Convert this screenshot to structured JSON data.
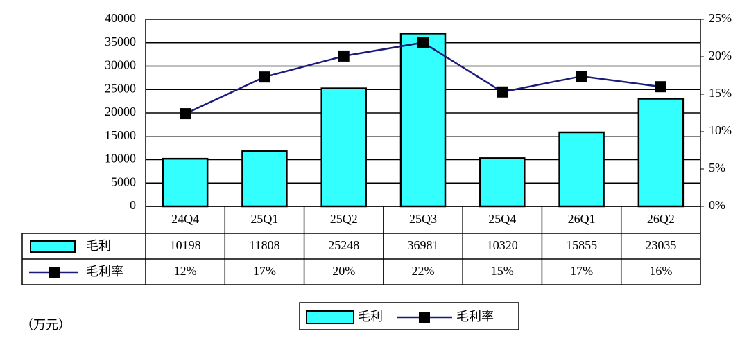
{
  "chart_data": {
    "type": "bar_line_table",
    "categories": [
      "24Q4",
      "25Q1",
      "25Q2",
      "25Q3",
      "25Q4",
      "26Q1",
      "26Q2"
    ],
    "series": [
      {
        "name": "毛利",
        "color": "#33ffff",
        "values": [
          10198,
          11808,
          25248,
          36981,
          10320,
          15855,
          23035
        ]
      },
      {
        "name": "毛利率",
        "color": "#1c1c78",
        "axis": "y2",
        "values": [
          12.4,
          17.3,
          20.1,
          21.9,
          15.3,
          17.4,
          16.0
        ],
        "value_labels": [
          "12%",
          "17%",
          "20%",
          "22%",
          "15%",
          "17%",
          "16%"
        ]
      }
    ],
    "ylim": [
      0,
      40000
    ],
    "yticks": [
      0,
      5000,
      10000,
      15000,
      20000,
      25000,
      30000,
      35000,
      40000
    ],
    "y2lim": [
      0,
      25
    ],
    "y2ticks": [
      {
        "value": 0,
        "label": "0%"
      },
      {
        "value": 5,
        "label": "5%"
      },
      {
        "value": 10,
        "label": "10%"
      },
      {
        "value": 15,
        "label": "15%"
      },
      {
        "value": 20,
        "label": "20%"
      },
      {
        "value": 25,
        "label": "25%"
      }
    ],
    "grid": true,
    "unit_label": "（万元）"
  }
}
